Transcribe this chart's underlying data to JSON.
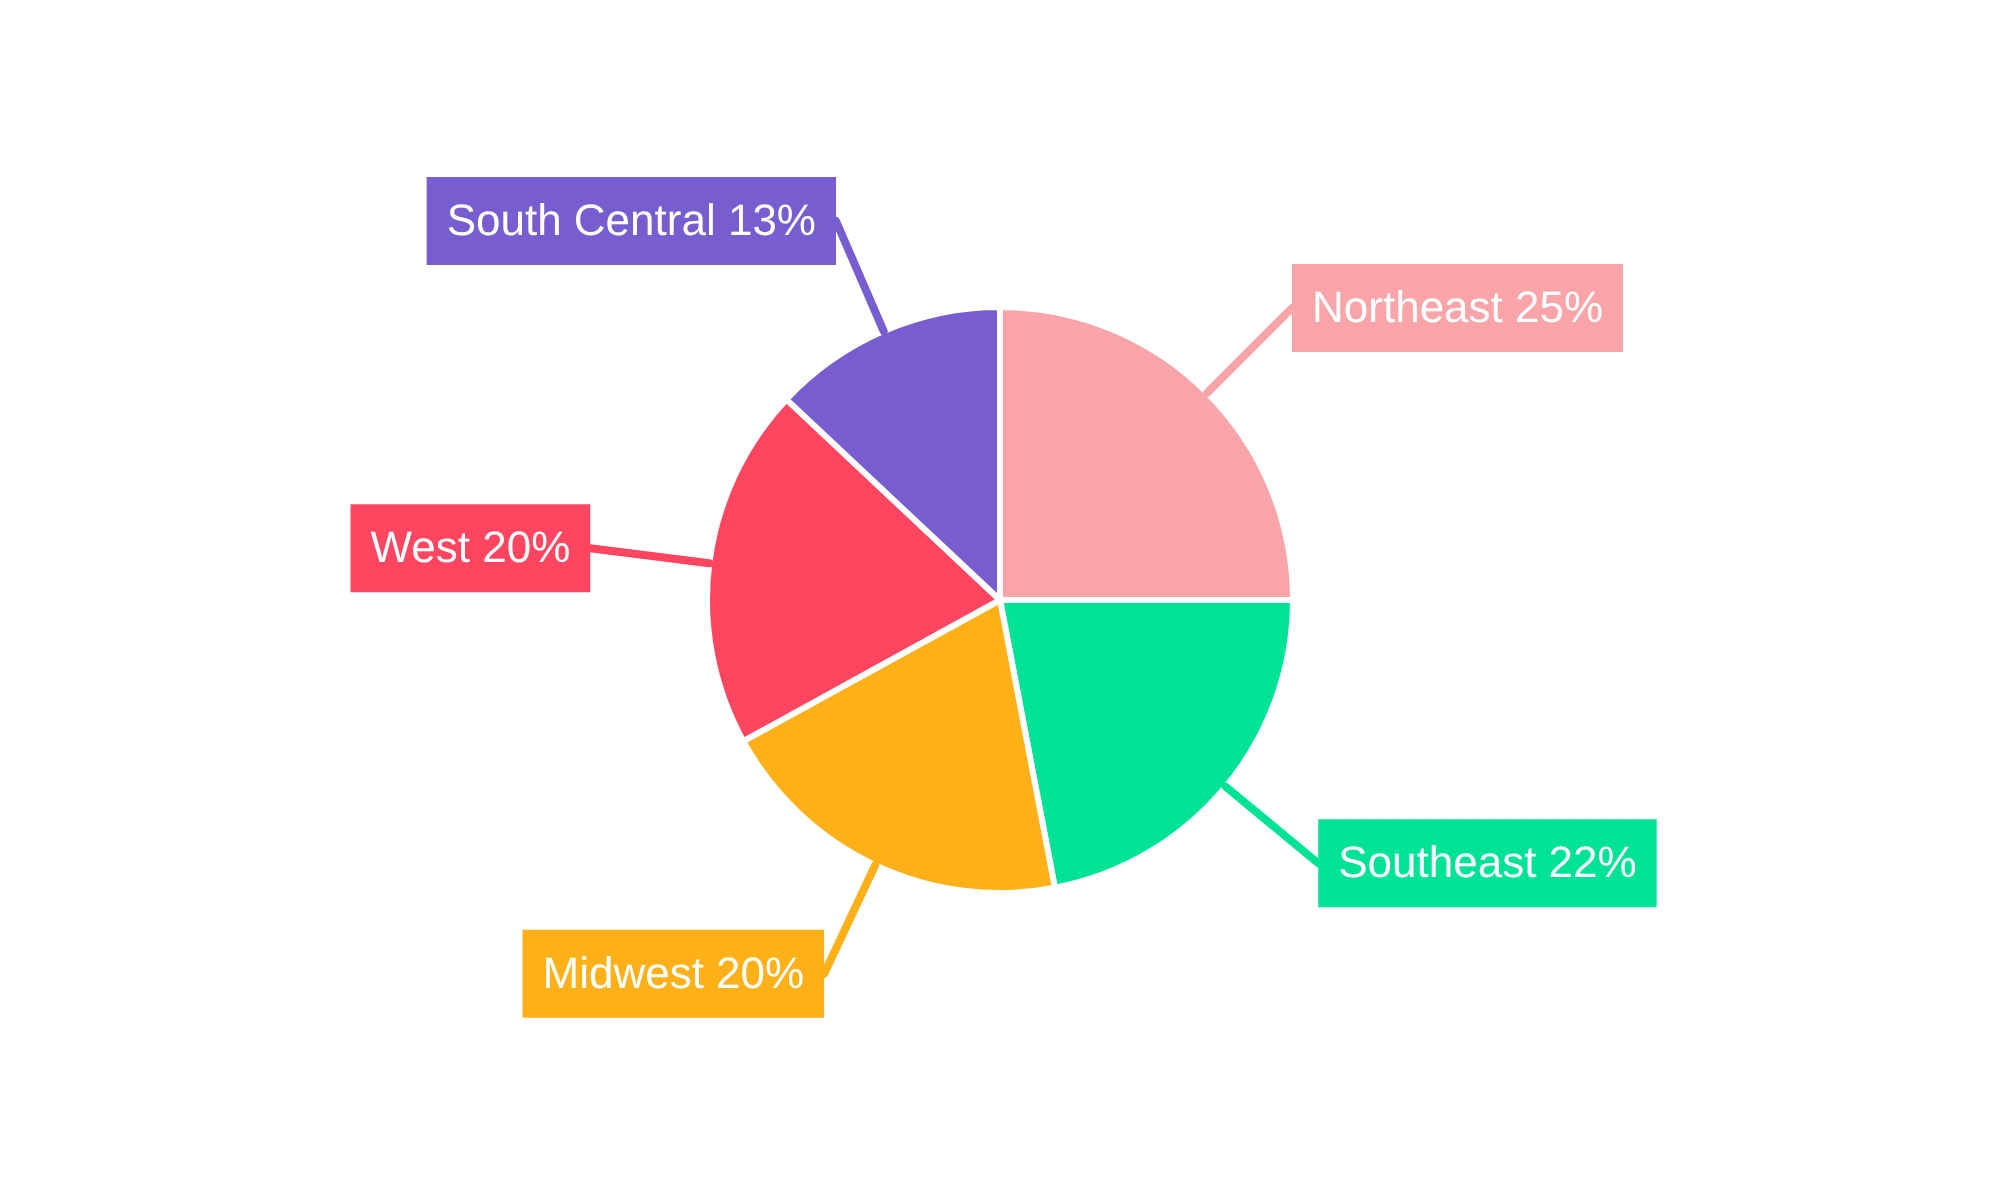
{
  "chart_data": {
    "type": "pie",
    "categories": [
      "Northeast",
      "Southeast",
      "Midwest",
      "West",
      "South Central"
    ],
    "values": [
      25,
      22,
      20,
      20,
      13
    ],
    "value_labels": [
      "25%",
      "22%",
      "20%",
      "20%",
      "13%"
    ],
    "colors": [
      "#f9a4a8",
      "#00e396",
      "#feb019",
      "#ff4560",
      "#775dd0"
    ],
    "legend": false
  }
}
